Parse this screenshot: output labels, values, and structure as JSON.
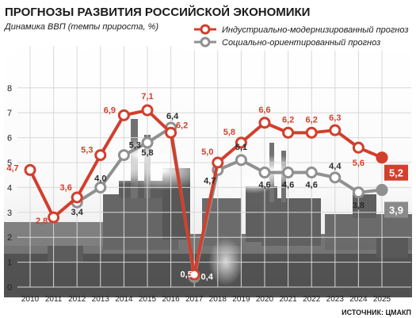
{
  "chart_data": {
    "type": "line",
    "title": "ПРОГНОЗЫ РАЗВИТИЯ РОССИЙСКОЙ ЭКОНОМИКИ",
    "subtitle": "Динамика ВВП (темпы прироста, %)",
    "source": "ИСТОЧНИК: ЦМАКП",
    "ylim": [
      0,
      8
    ],
    "grid": true,
    "legend_position": "top-right",
    "y_ticks": [
      "0",
      "1",
      "2",
      "3",
      "4",
      "5",
      "6",
      "7",
      "8"
    ],
    "categories": [
      "2010",
      "2011",
      "2012",
      "2013",
      "2014",
      "2015",
      "2016",
      "2017",
      "2018",
      "2019",
      "2020",
      "2021",
      "2022",
      "2023",
      "2024",
      "2025"
    ],
    "series": [
      {
        "name": "Индустриально-модернизированный прогноз",
        "color": "#d23f2c",
        "values": [
          4.7,
          2.8,
          3.6,
          5.3,
          6.9,
          7.1,
          6.2,
          0.5,
          5.0,
          5.8,
          6.6,
          6.2,
          6.2,
          6.3,
          5.6,
          5.2
        ],
        "labels": [
          "4,7",
          "2,8",
          "3,6",
          "5,3",
          "6,9",
          "7,1",
          "6,2",
          "0,5",
          "5,0",
          "5,8",
          "6,6",
          "6,2",
          "6,2",
          "6,3",
          "5,6",
          "5,2"
        ]
      },
      {
        "name": "Социально-ориентированный прогноз",
        "color": "#909090",
        "values": [
          null,
          null,
          3.4,
          4.0,
          5.3,
          5.8,
          6.4,
          0.4,
          4.7,
          5.1,
          4.6,
          4.6,
          4.6,
          4.4,
          3.8,
          3.9
        ],
        "labels": [
          "",
          "",
          "3,4",
          "4,0",
          "5,3",
          "5,8",
          "6,4",
          "0,4",
          "4,7",
          "5,1",
          "4,6",
          "4,6",
          "4,6",
          "4,4",
          "3,8",
          "3,9"
        ]
      }
    ]
  }
}
